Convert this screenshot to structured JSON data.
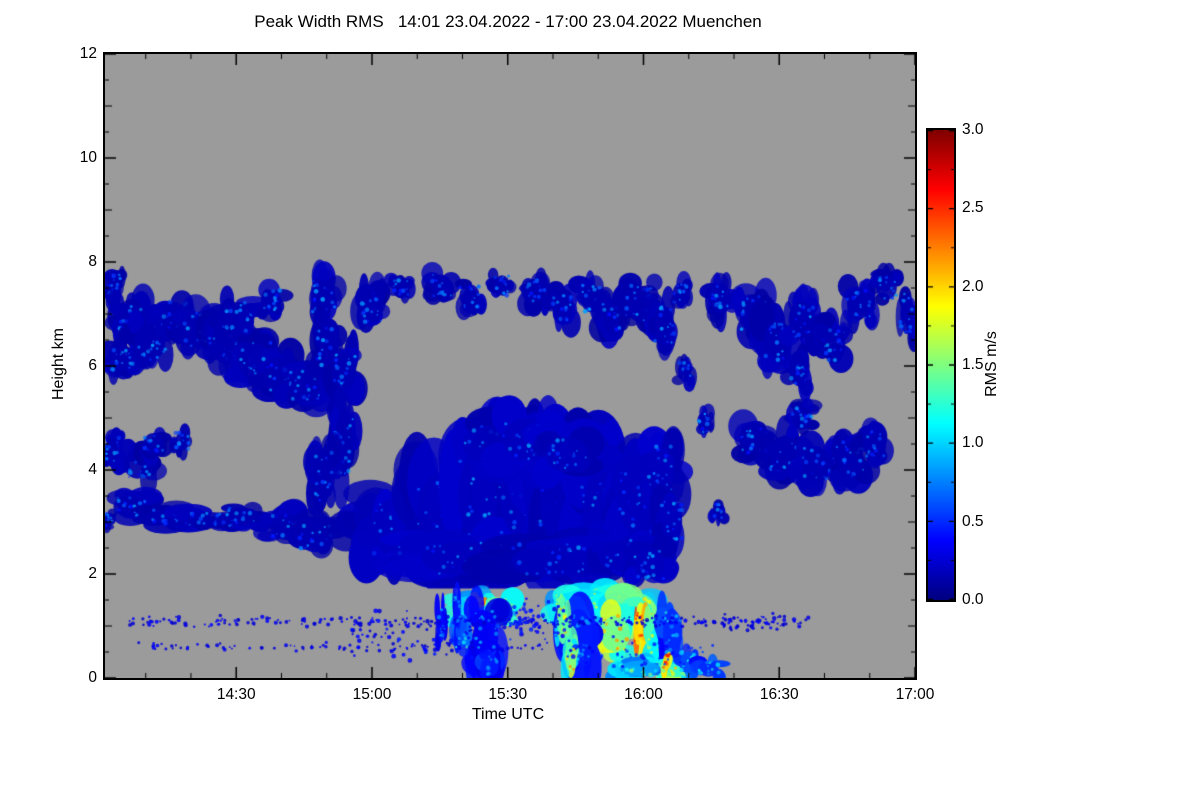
{
  "chart_data": {
    "type": "heatmap",
    "title": "Peak Width RMS   14:01 23.04.2022 - 17:00 23.04.2022 Muenchen",
    "xlabel": "Time UTC",
    "ylabel": "Height km",
    "x_axis": {
      "start_label": "14:01",
      "end_label": "17:00",
      "total_minutes": 179,
      "major_ticks": [
        {
          "label": "14:30",
          "minute": 29
        },
        {
          "label": "15:00",
          "minute": 59
        },
        {
          "label": "15:30",
          "minute": 89
        },
        {
          "label": "16:00",
          "minute": 119
        },
        {
          "label": "16:30",
          "minute": 149
        },
        {
          "label": "17:00",
          "minute": 179
        }
      ],
      "first_minor_minute": 9,
      "minor_step_minutes": 10
    },
    "y_axis": {
      "min": 0,
      "max": 12,
      "major_ticks": [
        0,
        2,
        4,
        6,
        8,
        10,
        12
      ],
      "minor_step": 0.5
    },
    "colorbar": {
      "label": "RMS m/s",
      "min": 0.0,
      "max": 3.0,
      "tick_values": [
        3.0,
        2.5,
        2.0,
        1.5,
        1.0,
        0.5,
        0.0
      ],
      "tick_labels": [
        "3.0",
        "2.5",
        "2.0",
        "1.5",
        "1.0",
        "0.5",
        "0.0"
      ],
      "minor_step": 0.25,
      "colormap": "jet"
    },
    "no_data_color": "#9b9b9b",
    "data_cutoff_height_km": 1.72,
    "cloud_format": [
      "x_fraction",
      "height_km",
      "radius_x_fraction",
      "radius_y_km",
      "rms_m_s",
      "blob_count"
    ],
    "clouds": [
      [
        0.012,
        7.55,
        0.012,
        0.3,
        0.15,
        10
      ],
      [
        0.03,
        6.9,
        0.022,
        0.45,
        0.15,
        14
      ],
      [
        0.02,
        6.15,
        0.02,
        0.35,
        0.15,
        12
      ],
      [
        0.055,
        6.45,
        0.028,
        0.5,
        0.15,
        16
      ],
      [
        0.085,
        6.95,
        0.022,
        0.4,
        0.15,
        14
      ],
      [
        0.115,
        6.7,
        0.025,
        0.45,
        0.15,
        14
      ],
      [
        0.15,
        6.4,
        0.03,
        0.5,
        0.15,
        16
      ],
      [
        0.185,
        6.1,
        0.03,
        0.5,
        0.15,
        16
      ],
      [
        0.215,
        5.85,
        0.028,
        0.45,
        0.15,
        14
      ],
      [
        0.245,
        5.6,
        0.028,
        0.45,
        0.15,
        14
      ],
      [
        0.165,
        6.95,
        0.028,
        0.4,
        0.15,
        14
      ],
      [
        0.205,
        7.25,
        0.018,
        0.3,
        0.15,
        10
      ],
      [
        0.27,
        7.35,
        0.02,
        0.45,
        0.15,
        12
      ],
      [
        0.275,
        6.4,
        0.018,
        0.6,
        0.15,
        12
      ],
      [
        0.295,
        5.9,
        0.022,
        0.5,
        0.15,
        12
      ],
      [
        0.33,
        7.15,
        0.018,
        0.45,
        0.15,
        12
      ],
      [
        0.365,
        7.5,
        0.014,
        0.28,
        0.15,
        9
      ],
      [
        0.415,
        7.55,
        0.018,
        0.3,
        0.15,
        10
      ],
      [
        0.45,
        7.35,
        0.018,
        0.32,
        0.15,
        10
      ],
      [
        0.49,
        7.55,
        0.014,
        0.28,
        0.15,
        9
      ],
      [
        0.53,
        7.45,
        0.018,
        0.32,
        0.15,
        10
      ],
      [
        0.565,
        7.1,
        0.018,
        0.38,
        0.15,
        11
      ],
      [
        0.6,
        7.3,
        0.018,
        0.38,
        0.15,
        11
      ],
      [
        0.63,
        6.9,
        0.022,
        0.45,
        0.15,
        13
      ],
      [
        0.66,
        7.2,
        0.024,
        0.5,
        0.15,
        14
      ],
      [
        0.69,
        6.8,
        0.018,
        0.5,
        0.15,
        12
      ],
      [
        0.71,
        7.4,
        0.013,
        0.28,
        0.15,
        8
      ],
      [
        0.76,
        7.3,
        0.018,
        0.4,
        0.15,
        11
      ],
      [
        0.8,
        7.0,
        0.024,
        0.5,
        0.15,
        14
      ],
      [
        0.83,
        6.5,
        0.024,
        0.55,
        0.15,
        14
      ],
      [
        0.86,
        6.9,
        0.02,
        0.5,
        0.15,
        13
      ],
      [
        0.9,
        6.4,
        0.02,
        0.45,
        0.15,
        12
      ],
      [
        0.93,
        7.2,
        0.02,
        0.45,
        0.15,
        12
      ],
      [
        0.965,
        7.5,
        0.018,
        0.32,
        0.15,
        10
      ],
      [
        0.99,
        7.0,
        0.012,
        0.55,
        0.15,
        10
      ],
      [
        0.855,
        5.95,
        0.014,
        0.45,
        0.15,
        10
      ],
      [
        0.01,
        4.4,
        0.014,
        0.32,
        0.15,
        9
      ],
      [
        0.04,
        4.1,
        0.024,
        0.38,
        0.15,
        12
      ],
      [
        0.06,
        4.5,
        0.018,
        0.3,
        0.15,
        10
      ],
      [
        0.095,
        4.55,
        0.012,
        0.25,
        0.15,
        8
      ],
      [
        0.03,
        3.3,
        0.028,
        0.28,
        0.15,
        12
      ],
      [
        0.005,
        3.05,
        0.012,
        0.18,
        0.15,
        7
      ],
      [
        0.08,
        3.1,
        0.038,
        0.22,
        0.15,
        14
      ],
      [
        0.13,
        3.05,
        0.038,
        0.2,
        0.15,
        14
      ],
      [
        0.17,
        3.1,
        0.028,
        0.24,
        0.15,
        12
      ],
      [
        0.225,
        2.9,
        0.03,
        0.35,
        0.15,
        12
      ],
      [
        0.26,
        2.7,
        0.03,
        0.4,
        0.15,
        12
      ],
      [
        0.295,
        4.5,
        0.016,
        0.9,
        0.15,
        14
      ],
      [
        0.27,
        3.9,
        0.016,
        0.7,
        0.15,
        12
      ],
      [
        0.33,
        2.6,
        0.038,
        0.55,
        0.18,
        16
      ],
      [
        0.36,
        2.9,
        0.045,
        0.8,
        0.18,
        18
      ],
      [
        0.42,
        3.2,
        0.048,
        1.1,
        0.18,
        20
      ],
      [
        0.47,
        3.5,
        0.048,
        1.4,
        0.18,
        22
      ],
      [
        0.52,
        3.6,
        0.048,
        1.4,
        0.18,
        22
      ],
      [
        0.57,
        3.4,
        0.048,
        1.3,
        0.18,
        20
      ],
      [
        0.62,
        3.2,
        0.045,
        1.1,
        0.18,
        18
      ],
      [
        0.66,
        3.4,
        0.038,
        0.95,
        0.18,
        16
      ],
      [
        0.47,
        4.5,
        0.04,
        0.5,
        0.18,
        14
      ],
      [
        0.52,
        4.6,
        0.042,
        0.55,
        0.18,
        14
      ],
      [
        0.57,
        4.3,
        0.038,
        0.48,
        0.18,
        13
      ],
      [
        0.44,
        2.3,
        0.07,
        0.45,
        0.18,
        18
      ],
      [
        0.55,
        2.25,
        0.07,
        0.45,
        0.18,
        18
      ],
      [
        0.64,
        2.35,
        0.045,
        0.45,
        0.18,
        14
      ],
      [
        0.685,
        4.0,
        0.026,
        0.65,
        0.18,
        13
      ],
      [
        0.7,
        3.0,
        0.018,
        0.6,
        0.18,
        12
      ],
      [
        0.672,
        2.2,
        0.026,
        0.42,
        0.18,
        12
      ],
      [
        0.8,
        4.6,
        0.024,
        0.42,
        0.15,
        13
      ],
      [
        0.84,
        4.3,
        0.028,
        0.48,
        0.15,
        14
      ],
      [
        0.88,
        4.1,
        0.028,
        0.45,
        0.15,
        14
      ],
      [
        0.92,
        4.2,
        0.024,
        0.48,
        0.15,
        13
      ],
      [
        0.95,
        4.5,
        0.02,
        0.38,
        0.15,
        11
      ],
      [
        0.86,
        5.0,
        0.018,
        0.32,
        0.15,
        10
      ],
      [
        0.74,
        4.9,
        0.011,
        0.26,
        0.15,
        8
      ],
      [
        0.757,
        3.2,
        0.009,
        0.22,
        0.15,
        7
      ],
      [
        0.715,
        5.9,
        0.011,
        0.28,
        0.15,
        8
      ]
    ],
    "precipitation": [
      [
        0.45,
        1.35,
        0.028,
        0.32,
        1.0,
        14
      ],
      [
        0.487,
        1.3,
        0.02,
        0.3,
        1.15,
        12
      ],
      [
        0.462,
        1.45,
        0.012,
        0.14,
        1.8,
        6
      ],
      [
        0.47,
        0.8,
        0.022,
        0.7,
        0.35,
        14
      ],
      [
        0.477,
        0.25,
        0.013,
        0.3,
        0.45,
        8
      ],
      [
        0.44,
        0.9,
        0.01,
        0.45,
        0.6,
        8
      ],
      [
        0.415,
        1.0,
        0.007,
        0.45,
        0.4,
        7
      ],
      [
        0.435,
        1.3,
        0.006,
        0.35,
        0.45,
        6
      ],
      [
        0.575,
        1.45,
        0.03,
        0.28,
        1.05,
        13
      ],
      [
        0.62,
        1.4,
        0.04,
        0.34,
        1.15,
        16
      ],
      [
        0.655,
        1.25,
        0.03,
        0.45,
        1.3,
        14
      ],
      [
        0.63,
        0.85,
        0.026,
        0.5,
        1.45,
        13
      ],
      [
        0.658,
        0.95,
        0.008,
        0.45,
        1.95,
        7
      ],
      [
        0.672,
        0.85,
        0.007,
        0.4,
        2.05,
        6
      ],
      [
        0.682,
        0.6,
        0.016,
        0.5,
        1.1,
        10
      ],
      [
        0.585,
        0.8,
        0.024,
        0.75,
        0.45,
        14
      ],
      [
        0.7,
        0.85,
        0.016,
        0.7,
        0.5,
        12
      ],
      [
        0.575,
        0.4,
        0.01,
        0.4,
        1.5,
        8
      ],
      [
        0.565,
        1.0,
        0.009,
        0.5,
        1.4,
        8
      ],
      [
        0.66,
        0.18,
        0.035,
        0.22,
        0.85,
        12
      ],
      [
        0.705,
        0.15,
        0.022,
        0.18,
        1.3,
        10
      ],
      [
        0.693,
        0.3,
        0.006,
        0.24,
        2.0,
        5
      ],
      [
        0.72,
        0.3,
        0.014,
        0.3,
        0.6,
        8
      ],
      [
        0.745,
        0.18,
        0.018,
        0.22,
        0.5,
        9
      ]
    ],
    "speckle_format": [
      "x0_fraction",
      "x1_fraction",
      "height_km",
      "count",
      "rms_m_s",
      "dot_px",
      "height_jitter_km"
    ],
    "speckle_bands": [
      [
        0.03,
        0.87,
        1.08,
        260,
        0.3,
        2.2,
        0.1
      ],
      [
        0.04,
        0.6,
        0.6,
        90,
        0.3,
        2.0,
        0.08
      ],
      [
        0.3,
        0.46,
        0.8,
        70,
        0.35,
        2.4,
        0.45
      ],
      [
        0.5,
        0.575,
        1.1,
        60,
        0.4,
        2.4,
        0.4
      ],
      [
        0.56,
        0.76,
        0.45,
        50,
        0.5,
        2.4,
        0.3
      ],
      [
        0.76,
        0.86,
        1.05,
        40,
        0.3,
        2.0,
        0.15
      ]
    ]
  }
}
